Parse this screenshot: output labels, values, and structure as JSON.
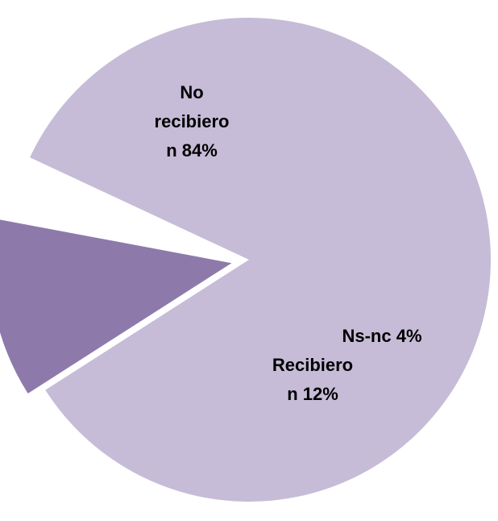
{
  "chart_data": {
    "type": "pie",
    "slices": [
      {
        "label_lines": [
          "No",
          "recibiero",
          "n 84%"
        ],
        "value": 84,
        "color": "#c6bcd7",
        "exploded": false
      },
      {
        "label_lines": [
          "Recibiero",
          "n 12%"
        ],
        "value": 12,
        "color": "#8d7aab",
        "exploded": true
      },
      {
        "label_lines": [
          "Ns-nc 4%"
        ],
        "value": 4,
        "color": "#ffffff",
        "exploded": true
      }
    ]
  }
}
